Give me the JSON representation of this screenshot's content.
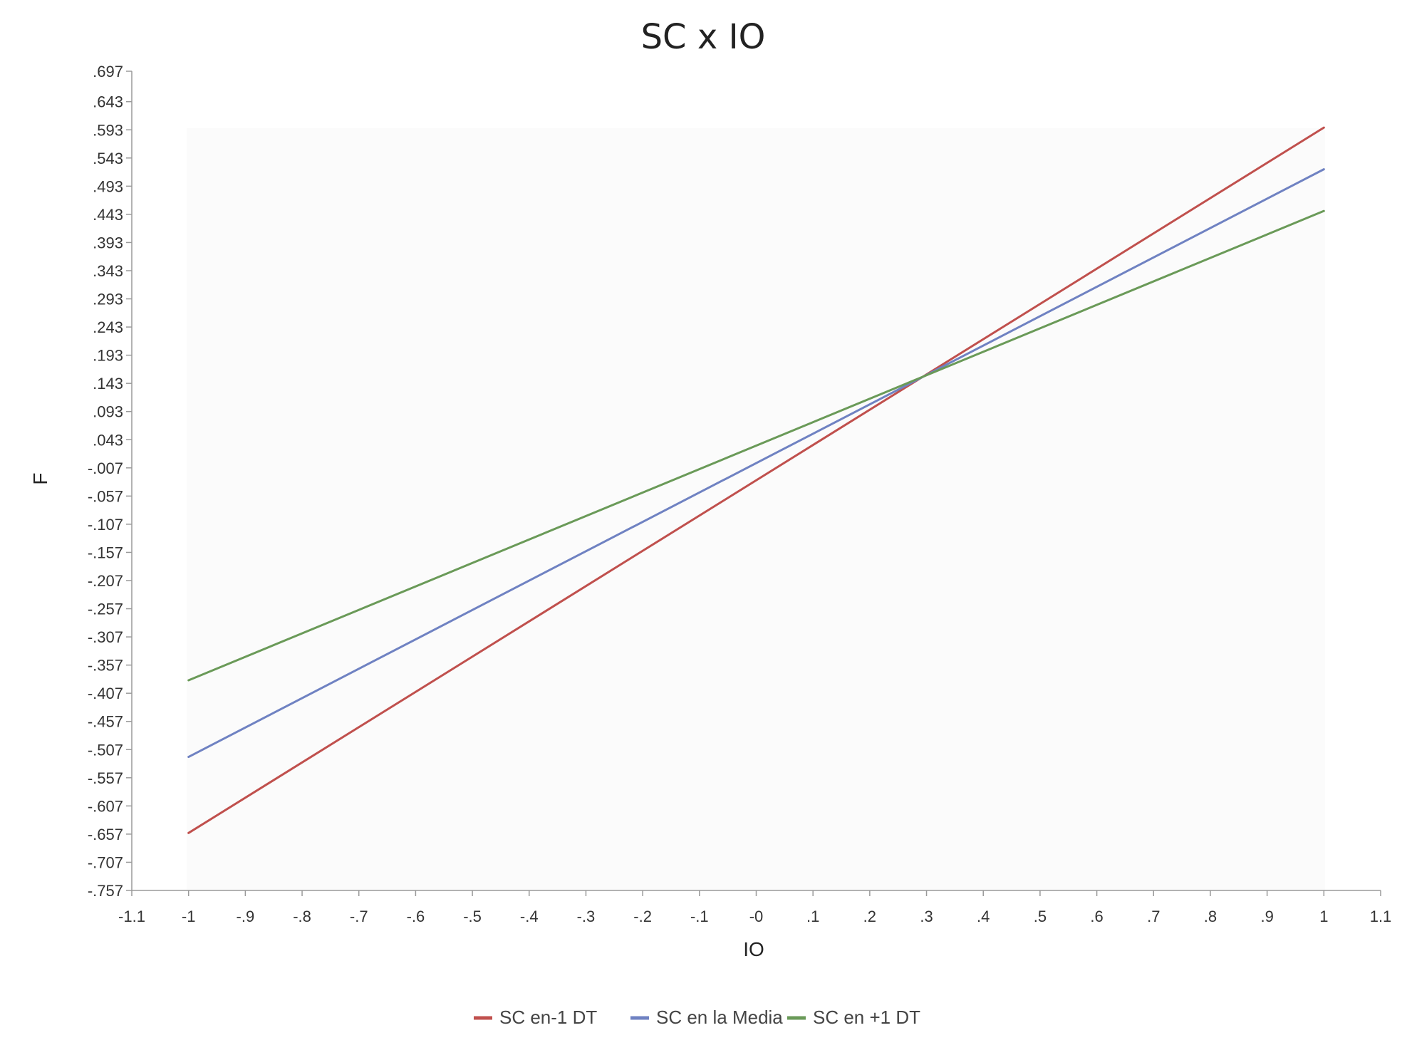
{
  "chart_data": {
    "type": "line",
    "title": "SC x IO",
    "xlabel": "IO",
    "ylabel": "F",
    "xlim": [
      -1.1,
      1.1
    ],
    "ylim": [
      -0.757,
      0.697
    ],
    "x_ticks": [
      -1.1,
      -1,
      -0.9,
      -0.8,
      -0.7,
      -0.6,
      -0.5,
      -0.4,
      -0.3,
      -0.2,
      -0.1,
      0,
      0.1,
      0.2,
      0.3,
      0.4,
      0.5,
      0.6,
      0.7,
      0.8,
      0.9,
      1,
      1.1
    ],
    "x_tick_labels": [
      "-1.1",
      "-1",
      "-.9",
      "-.8",
      "-.7",
      "-.6",
      "-.5",
      "-.4",
      "-.3",
      "-.2",
      "-.1",
      "-0",
      ".1",
      ".2",
      ".3",
      ".4",
      ".5",
      ".6",
      ".7",
      ".8",
      ".9",
      "1",
      "1.1"
    ],
    "y_ticks": [
      0.697,
      0.643,
      0.593,
      0.543,
      0.493,
      0.443,
      0.393,
      0.343,
      0.293,
      0.243,
      0.193,
      0.143,
      0.093,
      0.043,
      -0.007,
      -0.057,
      -0.107,
      -0.157,
      -0.207,
      -0.257,
      -0.307,
      -0.357,
      -0.407,
      -0.457,
      -0.507,
      -0.557,
      -0.607,
      -0.657,
      -0.707,
      -0.757
    ],
    "y_tick_labels": [
      ".697",
      ".643",
      ".593",
      ".543",
      ".493",
      ".443",
      ".393",
      ".343",
      ".293",
      ".243",
      ".193",
      ".143",
      ".093",
      ".043",
      "-.007",
      "-.057",
      "-.107",
      "-.157",
      "-.207",
      "-.257",
      "-.307",
      "-.357",
      "-.407",
      "-.457",
      "-.507",
      "-.557",
      "-.607",
      "-.657",
      "-.707",
      "-.757"
    ],
    "grid": false,
    "legend_position": "bottom-center",
    "series": [
      {
        "name": "SC en-1 DT",
        "color": "#c0504d",
        "x": [
          -1,
          1
        ],
        "y": [
          -0.655,
          0.597
        ]
      },
      {
        "name": "SC en la Media",
        "color": "#6f82c2",
        "x": [
          -1,
          1
        ],
        "y": [
          -0.52,
          0.523
        ]
      },
      {
        "name": "SC en +1 DT",
        "color": "#6a9a58",
        "x": [
          -1,
          1
        ],
        "y": [
          -0.384,
          0.449
        ]
      }
    ]
  }
}
